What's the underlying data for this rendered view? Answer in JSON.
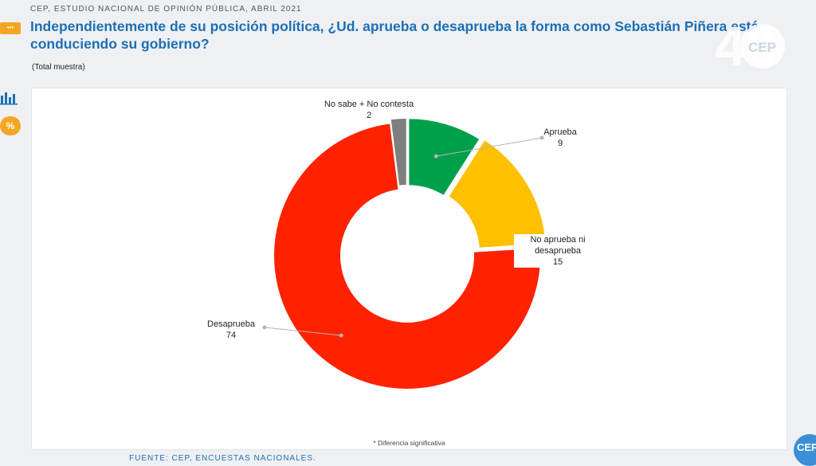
{
  "header": {
    "source_line": "CEP, ESTUDIO NACIONAL DE OPINIÓN PÚBLICA, ABRIL 2021",
    "title": "Independientemente de su posición política, ¿Ud. aprueba o desaprueba la forma como Sebastián Piñera está conduciendo su gobierno?",
    "subtitle": "(Total muestra)"
  },
  "footer": {
    "footnote": "* Diferencia significativa",
    "source": "FUENTE: CEP, ENCUESTAS NACIONALES."
  },
  "logos": {
    "anniversary": "40",
    "brand": "CEP"
  },
  "icons": {
    "chat": "chat-bubble-icon",
    "bars": "bar-chart-icon",
    "percent": "percent-icon"
  },
  "icon_text": {
    "percent": "%",
    "chat": "•••"
  },
  "colors": {
    "accent": "#1e6fb4",
    "aprueba": "#00a04b",
    "neutral": "#ffc000",
    "desaprueba": "#ff2200",
    "ns_nc": "#7f7f7f",
    "orange_icon": "#f4a623"
  },
  "chart_data": {
    "type": "pie",
    "donut": true,
    "slices": [
      {
        "label": "Aprueba",
        "value": 9,
        "color": "#00a04b"
      },
      {
        "label": "No aprueba ni desaprueba",
        "value": 15,
        "color": "#ffc000"
      },
      {
        "label": "Desaprueba",
        "value": 74,
        "color": "#ff2200"
      },
      {
        "label": "No sabe + No contesta",
        "value": 2,
        "color": "#7f7f7f"
      }
    ],
    "label_lines": {
      "aprueba": [
        "Aprueba",
        "9"
      ],
      "neutral": [
        "No aprueba ni",
        "desaprueba",
        "15"
      ],
      "desaprueba": [
        "Desaprueba",
        "74"
      ],
      "ns_nc": [
        "No sabe + No contesta",
        "2"
      ]
    }
  }
}
